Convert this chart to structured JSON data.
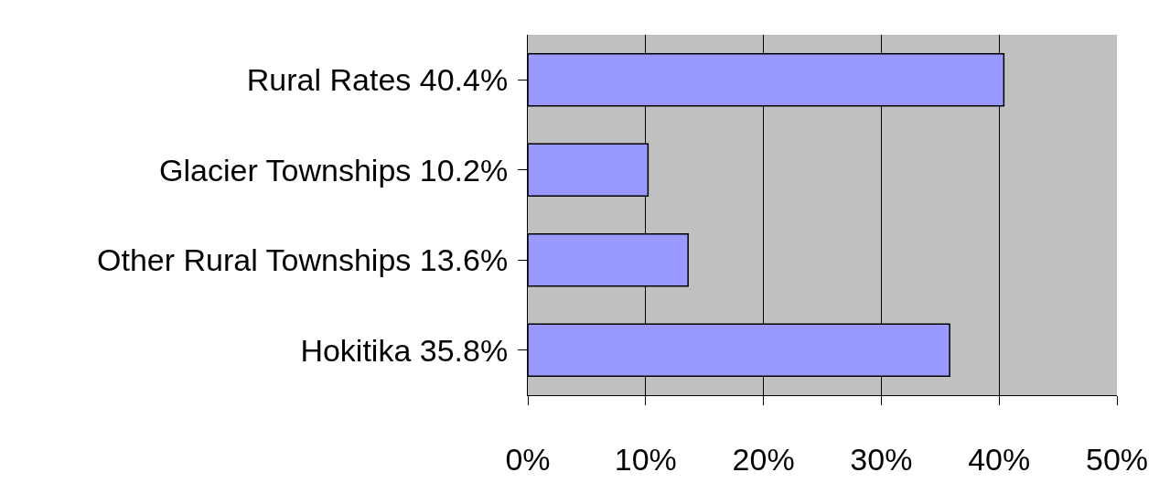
{
  "chart_data": {
    "type": "bar",
    "orientation": "horizontal",
    "categories": [
      "Rural Rates 40.4%",
      "Glacier Townships 10.2%",
      "Other Rural Townships 13.6%",
      "Hokitika 35.8%"
    ],
    "values": [
      40.4,
      10.2,
      13.6,
      35.8
    ],
    "color": "#9999ff",
    "xlim": [
      0,
      50
    ],
    "xticks": [
      {
        "value": 0,
        "label": "0%"
      },
      {
        "value": 10,
        "label": "10%"
      },
      {
        "value": 20,
        "label": "20%"
      },
      {
        "value": 30,
        "label": "30%"
      },
      {
        "value": 40,
        "label": "40%"
      },
      {
        "value": 50,
        "label": "50%"
      }
    ],
    "grid": "x",
    "legend": false
  }
}
